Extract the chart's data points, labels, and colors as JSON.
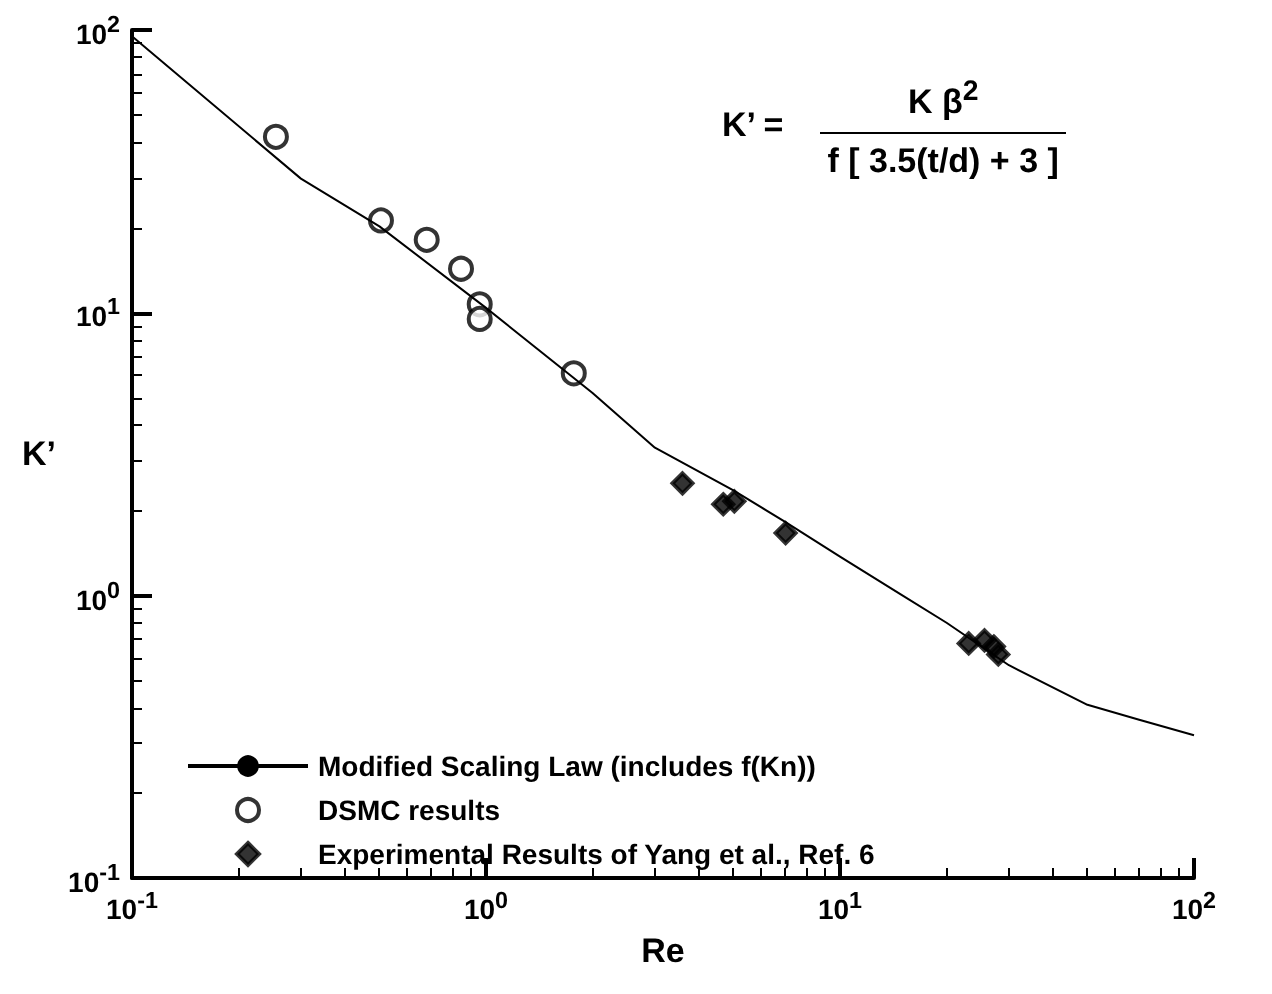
{
  "chart_data": {
    "type": "scatter",
    "xlabel": "Re",
    "ylabel": "K’",
    "log": "xy",
    "xlim": [
      0.1,
      100
    ],
    "ylim": [
      0.1,
      100
    ],
    "xticks": [
      {
        "value": 0.1,
        "label": "10$^{-1}$"
      },
      {
        "value": 1,
        "label": "10$^{0}$"
      },
      {
        "value": 10,
        "label": "10$^{1}$"
      },
      {
        "value": 100,
        "label": "10$^{2}$"
      }
    ],
    "yticks": [
      {
        "value": 0.1,
        "label": "10$^{-1}$"
      },
      {
        "value": 1,
        "label": "10$^{0}$"
      },
      {
        "value": 10,
        "label": "10$^{1}$"
      },
      {
        "value": 100,
        "label": "10$^{2}$"
      }
    ],
    "grid": false,
    "legend": "bottom left",
    "annotations": [
      "K’ =",
      "K β$^{2}$",
      "f [ 3.5(t/d) + 3 ]"
    ],
    "series": [
      {
        "name": "Modified Scaling Law (includes f(Kn))",
        "type": "line",
        "color": "#000000",
        "marker": "none",
        "line_style": "solid",
        "x": [
          0.1,
          0.3,
          0.5,
          1,
          2,
          3,
          5,
          7,
          10,
          15,
          20,
          30,
          50,
          70,
          100
        ],
        "values": [
          95,
          29.8,
          20.2,
          10.4,
          5.2,
          3.33,
          2.35,
          1.82,
          1.37,
          1.0,
          0.8,
          0.566,
          0.41,
          0.363,
          0.32
        ]
      },
      {
        "name": "DSMC results",
        "color": "#000000",
        "marker": "circle",
        "x": [
          0.255,
          0.505,
          0.68,
          0.85,
          0.96,
          0.96,
          1.77
        ],
        "values": [
          41.9,
          21.2,
          18.1,
          14.3,
          10.7,
          9.5,
          6.1
        ]
      },
      {
        "name": "Experimental Results of Yang et al., Ref. 6",
        "color": "#000000",
        "marker": "diamond",
        "x": [
          3.59,
          4.68,
          5.03,
          7.02,
          23.1,
          25.6,
          27.2,
          28.0
        ],
        "values": [
          2.49,
          2.1,
          2.15,
          1.66,
          0.676,
          0.693,
          0.659,
          0.618
        ]
      }
    ]
  }
}
